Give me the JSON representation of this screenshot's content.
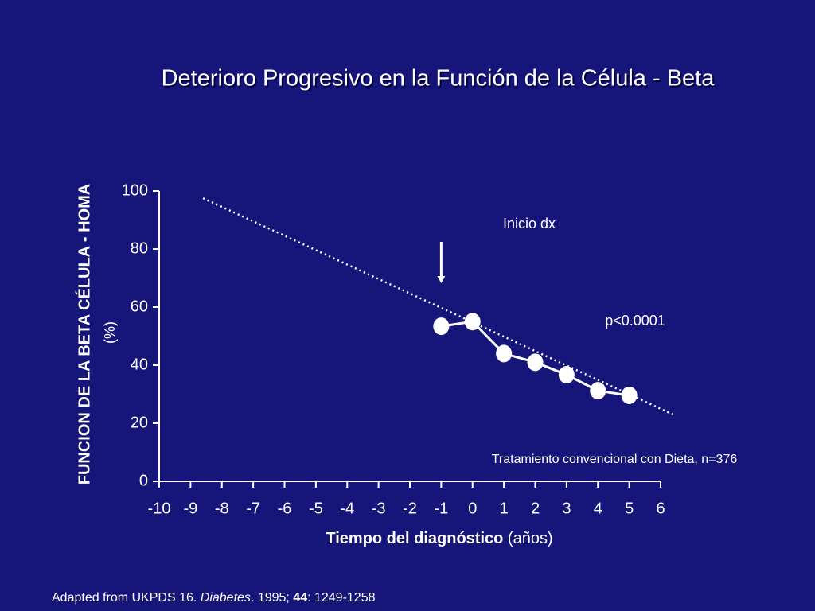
{
  "chart_data": {
    "type": "line",
    "title": "Deterioro Progresivo en la Función de la Célula - Beta",
    "y_label": "FUNCION DE LA BETA CÉLULA - HOMA",
    "y_label_unit": "(%)",
    "x_label": "Tiempo del diagnóstico",
    "x_label_unit": "(años)",
    "xlim": [
      -10,
      6
    ],
    "xticks": [
      -10,
      -9,
      -8,
      -7,
      -6,
      -5,
      -4,
      -3,
      -2,
      -1,
      0,
      1,
      2,
      3,
      4,
      5,
      6
    ],
    "ylim": [
      0,
      100
    ],
    "yticks": [
      0,
      20,
      40,
      60,
      80,
      100
    ],
    "series": [
      {
        "name": "Tratamiento convencional con Dieta, n=376",
        "color": "#ffffff",
        "x": [
          -1,
          0,
          1,
          2,
          3,
          4,
          5
        ],
        "values": [
          53.4,
          55,
          44,
          41,
          36.7,
          31.2,
          29.6
        ]
      },
      {
        "color": "#ffffff",
        "style": "dotted",
        "x": [
          -8.6,
          6.4
        ],
        "values": [
          97.5,
          23
        ]
      }
    ],
    "annotations": [
      {
        "text": "Inicio dx",
        "x": -1
      },
      {
        "text": "p<0.0001"
      }
    ],
    "source": [
      "Adapted from UKPDS 16. ",
      "Diabetes",
      ". 1995; ",
      "44",
      ": 1249-1258"
    ]
  }
}
